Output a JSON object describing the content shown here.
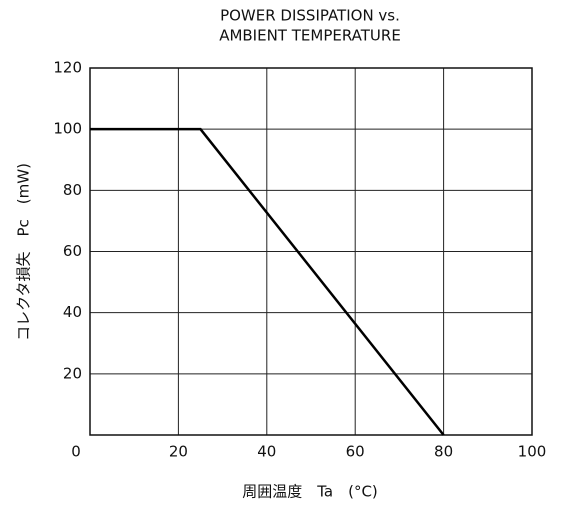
{
  "chart_data": {
    "type": "line",
    "title": [
      "POWER DISSIPATION vs.",
      "AMBIENT TEMPERATURE"
    ],
    "x_label": "周囲温度　Ta　(°C)",
    "y_label": "コレクタ損失　Pc　(mW)",
    "x": [
      0,
      25,
      80
    ],
    "series": [
      {
        "color": "#000000",
        "values": [
          100,
          100,
          0
        ]
      }
    ],
    "xlim": [
      0,
      100
    ],
    "xticks": [
      0,
      20,
      40,
      60,
      80,
      100
    ],
    "ylim": [
      0,
      120
    ],
    "yticks": [
      20,
      40,
      60,
      80,
      100,
      120
    ],
    "grid": true
  }
}
